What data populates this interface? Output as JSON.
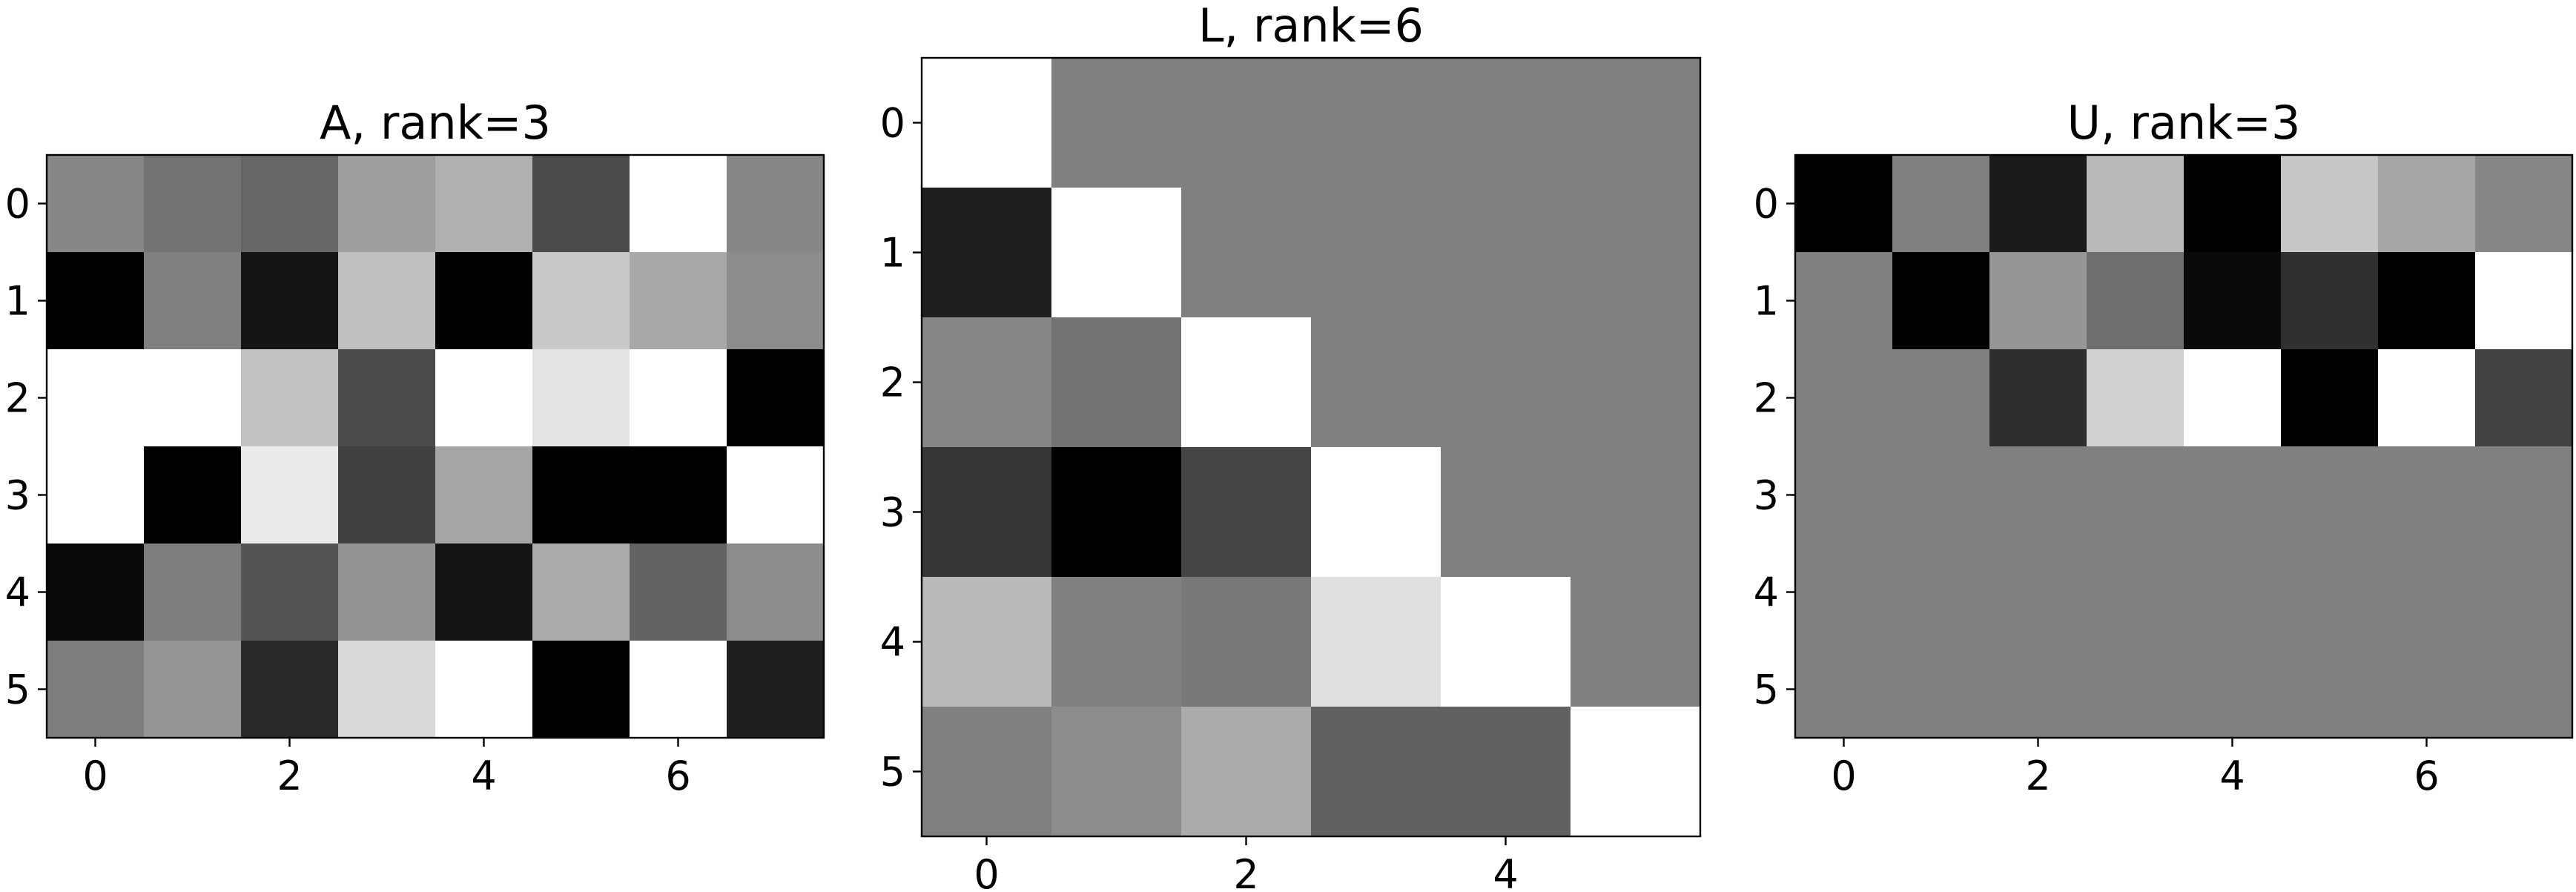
{
  "chart_data": [
    {
      "type": "heatmap",
      "title": "A, rank=3",
      "colormap": "gray",
      "rows": 6,
      "cols": 8,
      "xticks": [
        0,
        2,
        4,
        6
      ],
      "yticks": [
        0,
        1,
        2,
        3,
        4,
        5
      ],
      "values": [
        [
          0.53,
          0.45,
          0.4,
          0.62,
          0.69,
          0.29,
          1.0,
          0.53
        ],
        [
          0.0,
          0.5,
          0.08,
          0.75,
          0.0,
          0.79,
          0.66,
          0.55
        ],
        [
          1.0,
          1.0,
          0.76,
          0.29,
          1.0,
          0.89,
          1.0,
          0.0
        ],
        [
          1.0,
          0.0,
          0.92,
          0.25,
          0.65,
          0.0,
          0.0,
          1.0
        ],
        [
          0.03,
          0.49,
          0.33,
          0.58,
          0.08,
          0.67,
          0.39,
          0.55
        ],
        [
          0.49,
          0.59,
          0.16,
          0.85,
          1.0,
          0.0,
          1.0,
          0.12
        ]
      ]
    },
    {
      "type": "heatmap",
      "title": "L, rank=6",
      "colormap": "gray",
      "rows": 6,
      "cols": 6,
      "xticks": [
        0,
        2,
        4
      ],
      "yticks": [
        0,
        1,
        2,
        3,
        4,
        5
      ],
      "values": [
        [
          1.0,
          0.5,
          0.5,
          0.5,
          0.5,
          0.5
        ],
        [
          0.12,
          1.0,
          0.5,
          0.5,
          0.5,
          0.5
        ],
        [
          0.53,
          0.45,
          1.0,
          0.5,
          0.5,
          0.5
        ],
        [
          0.21,
          0.0,
          0.27,
          1.0,
          0.5,
          0.5
        ],
        [
          0.73,
          0.5,
          0.47,
          0.88,
          1.0,
          0.5
        ],
        [
          0.5,
          0.55,
          0.67,
          0.38,
          0.38,
          1.0
        ]
      ]
    },
    {
      "type": "heatmap",
      "title": "U, rank=3",
      "colormap": "gray",
      "rows": 6,
      "cols": 8,
      "xticks": [
        0,
        2,
        4,
        6
      ],
      "yticks": [
        0,
        1,
        2,
        3,
        4,
        5
      ],
      "values": [
        [
          0.0,
          0.5,
          0.1,
          0.73,
          0.0,
          0.78,
          0.65,
          0.53
        ],
        [
          0.5,
          0.0,
          0.59,
          0.43,
          0.04,
          0.19,
          0.0,
          1.0
        ],
        [
          0.5,
          0.5,
          0.18,
          0.82,
          1.0,
          0.0,
          1.0,
          0.26
        ],
        [
          0.5,
          0.5,
          0.5,
          0.5,
          0.5,
          0.5,
          0.5,
          0.5
        ],
        [
          0.5,
          0.5,
          0.5,
          0.5,
          0.5,
          0.5,
          0.5,
          0.5
        ],
        [
          0.5,
          0.5,
          0.5,
          0.5,
          0.5,
          0.5,
          0.5,
          0.5
        ]
      ]
    }
  ]
}
